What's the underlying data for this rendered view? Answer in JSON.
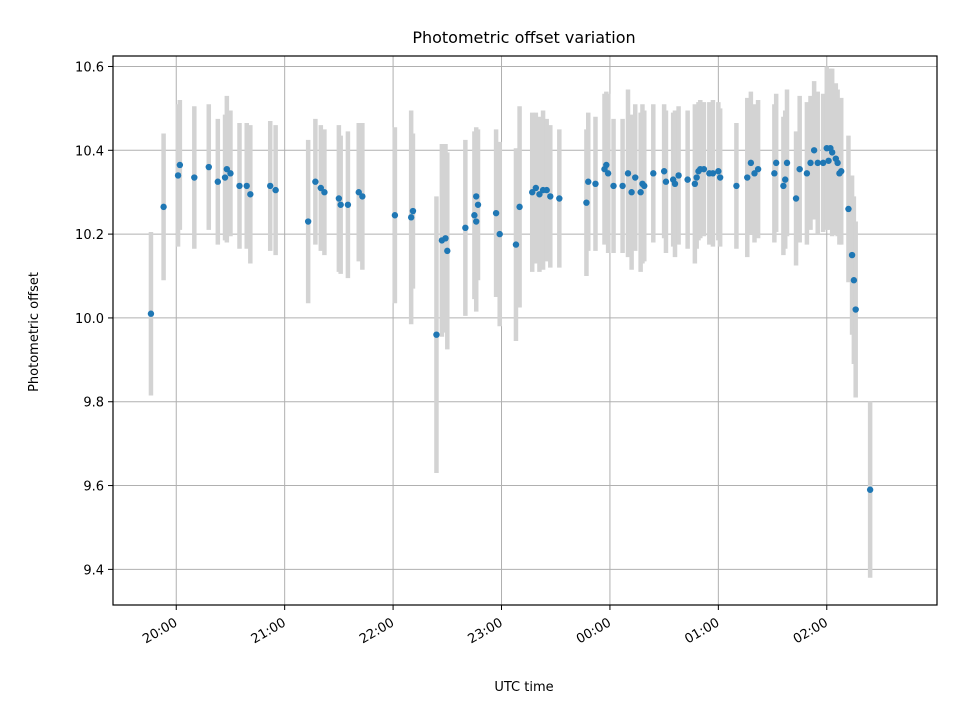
{
  "chart_data": {
    "type": "scatter",
    "title": "Photometric offset variation",
    "xlabel": "UTC time",
    "ylabel": "Photometric offset",
    "xlim": [
      "19:25",
      "03:01"
    ],
    "ylim": [
      9.315,
      10.625
    ],
    "grid": true,
    "x_ticks": [
      "20:00",
      "21:00",
      "22:00",
      "23:00",
      "00:00",
      "01:00",
      "02:00"
    ],
    "y_ticks": [
      "9.4",
      "9.6",
      "9.8",
      "10.0",
      "10.2",
      "10.4",
      "10.6"
    ],
    "colors": {
      "point": "#1f77b4",
      "errorbar": "#d3d3d3",
      "grid": "#b0b0b0"
    },
    "series": [
      {
        "points": [
          [
            "19:46",
            10.01,
            0.195
          ],
          [
            "19:53",
            10.265,
            0.175
          ],
          [
            "20:01",
            10.34,
            0.17
          ],
          [
            "20:02",
            10.365,
            0.155
          ],
          [
            "20:10",
            10.335,
            0.17
          ],
          [
            "20:18",
            10.36,
            0.15
          ],
          [
            "20:23",
            10.325,
            0.15
          ],
          [
            "20:27",
            10.335,
            0.15
          ],
          [
            "20:28",
            10.355,
            0.175
          ],
          [
            "20:30",
            10.345,
            0.15
          ],
          [
            "20:35",
            10.315,
            0.15
          ],
          [
            "20:39",
            10.315,
            0.15
          ],
          [
            "20:41",
            10.295,
            0.165
          ],
          [
            "20:52",
            10.315,
            0.155
          ],
          [
            "20:55",
            10.305,
            0.155
          ],
          [
            "21:13",
            10.23,
            0.195
          ],
          [
            "21:17",
            10.325,
            0.15
          ],
          [
            "21:20",
            10.31,
            0.15
          ],
          [
            "21:22",
            10.3,
            0.15
          ],
          [
            "21:30",
            10.285,
            0.175
          ],
          [
            "21:31",
            10.27,
            0.165
          ],
          [
            "21:35",
            10.27,
            0.175
          ],
          [
            "21:41",
            10.3,
            0.165
          ],
          [
            "21:43",
            10.29,
            0.175
          ],
          [
            "22:01",
            10.245,
            0.21
          ],
          [
            "22:10",
            10.24,
            0.255
          ],
          [
            "22:11",
            10.255,
            0.185
          ],
          [
            "22:24",
            9.96,
            0.33
          ],
          [
            "22:27",
            10.185,
            0.23
          ],
          [
            "22:29",
            10.19,
            0.225
          ],
          [
            "22:30",
            10.16,
            0.235
          ],
          [
            "22:40",
            10.215,
            0.21
          ],
          [
            "22:45",
            10.245,
            0.2
          ],
          [
            "22:46",
            10.23,
            0.215
          ],
          [
            "22:46",
            10.29,
            0.165
          ],
          [
            "22:47",
            10.27,
            0.18
          ],
          [
            "22:57",
            10.25,
            0.2
          ],
          [
            "22:59",
            10.2,
            0.22
          ],
          [
            "23:08",
            10.175,
            0.23
          ],
          [
            "23:10",
            10.265,
            0.24
          ],
          [
            "23:17",
            10.3,
            0.19
          ],
          [
            "23:19",
            10.31,
            0.18
          ],
          [
            "23:21",
            10.295,
            0.185
          ],
          [
            "23:23",
            10.305,
            0.19
          ],
          [
            "23:25",
            10.305,
            0.17
          ],
          [
            "23:27",
            10.29,
            0.17
          ],
          [
            "23:32",
            10.285,
            0.165
          ],
          [
            "23:47",
            10.275,
            0.175
          ],
          [
            "23:48",
            10.325,
            0.165
          ],
          [
            "23:52",
            10.32,
            0.16
          ],
          [
            "23:57",
            10.355,
            0.18
          ],
          [
            "23:58",
            10.365,
            0.175
          ],
          [
            "23:59",
            10.345,
            0.19
          ],
          [
            "00:02",
            10.315,
            0.16
          ],
          [
            "00:07",
            10.315,
            0.16
          ],
          [
            "00:10",
            10.345,
            0.2
          ],
          [
            "00:12",
            10.3,
            0.185
          ],
          [
            "00:14",
            10.335,
            0.175
          ],
          [
            "00:17",
            10.3,
            0.19
          ],
          [
            "00:18",
            10.32,
            0.19
          ],
          [
            "00:19",
            10.315,
            0.18
          ],
          [
            "00:24",
            10.345,
            0.165
          ],
          [
            "00:30",
            10.35,
            0.16
          ],
          [
            "00:31",
            10.325,
            0.17
          ],
          [
            "00:35",
            10.33,
            0.16
          ],
          [
            "00:36",
            10.32,
            0.175
          ],
          [
            "00:38",
            10.34,
            0.165
          ],
          [
            "00:43",
            10.33,
            0.165
          ],
          [
            "00:47",
            10.32,
            0.19
          ],
          [
            "00:48",
            10.335,
            0.17
          ],
          [
            "00:49",
            10.35,
            0.165
          ],
          [
            "00:50",
            10.355,
            0.165
          ],
          [
            "00:52",
            10.355,
            0.16
          ],
          [
            "00:55",
            10.345,
            0.17
          ],
          [
            "00:57",
            10.345,
            0.175
          ],
          [
            "01:00",
            10.35,
            0.165
          ],
          [
            "01:01",
            10.335,
            0.165
          ],
          [
            "01:10",
            10.315,
            0.15
          ],
          [
            "01:16",
            10.335,
            0.19
          ],
          [
            "01:18",
            10.37,
            0.17
          ],
          [
            "01:20",
            10.345,
            0.165
          ],
          [
            "01:22",
            10.355,
            0.165
          ],
          [
            "01:31",
            10.345,
            0.165
          ],
          [
            "01:32",
            10.37,
            0.165
          ],
          [
            "01:36",
            10.315,
            0.165
          ],
          [
            "01:37",
            10.33,
            0.165
          ],
          [
            "01:38",
            10.37,
            0.175
          ],
          [
            "01:43",
            10.285,
            0.16
          ],
          [
            "01:45",
            10.355,
            0.175
          ],
          [
            "01:49",
            10.345,
            0.17
          ],
          [
            "01:51",
            10.37,
            0.16
          ],
          [
            "01:53",
            10.4,
            0.165
          ],
          [
            "01:55",
            10.37,
            0.17
          ],
          [
            "01:58",
            10.37,
            0.165
          ],
          [
            "02:00",
            10.405,
            0.195
          ],
          [
            "02:01",
            10.375,
            0.165
          ],
          [
            "02:02",
            10.405,
            0.19
          ],
          [
            "02:03",
            10.395,
            0.2
          ],
          [
            "02:05",
            10.38,
            0.18
          ],
          [
            "02:06",
            10.37,
            0.175
          ],
          [
            "02:07",
            10.345,
            0.17
          ],
          [
            "02:08",
            10.35,
            0.175
          ],
          [
            "02:12",
            10.26,
            0.175
          ],
          [
            "02:14",
            10.15,
            0.19
          ],
          [
            "02:15",
            10.09,
            0.2
          ],
          [
            "02:16",
            10.02,
            0.21
          ],
          [
            "02:24",
            9.59,
            0.21
          ]
        ]
      }
    ]
  }
}
